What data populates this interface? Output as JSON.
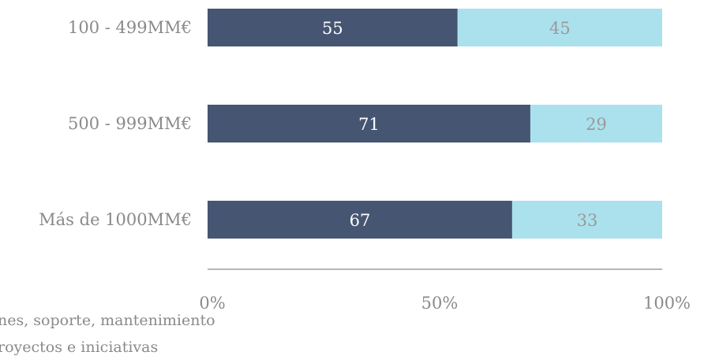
{
  "chart_data": {
    "type": "bar",
    "orientation": "horizontal",
    "stacked": true,
    "categories": [
      "100 - 499MM€",
      "500 - 999MM€",
      "Más de 1000MM€"
    ],
    "series": [
      {
        "name": "…nes, soporte, mantenimiento",
        "values": [
          55,
          71,
          67
        ],
        "color": "#465672",
        "label_color": "#ffffff"
      },
      {
        "name": "…royectos e iniciativas",
        "values": [
          45,
          29,
          33
        ],
        "color": "#abe1ed",
        "label_color": "#9a9a9a"
      }
    ],
    "xticks": [
      "0%",
      "50%",
      "100%"
    ],
    "xlim": [
      0,
      100
    ],
    "title": "",
    "xlabel": "",
    "ylabel": "",
    "grid": false,
    "legend_position": "bottom-left"
  }
}
